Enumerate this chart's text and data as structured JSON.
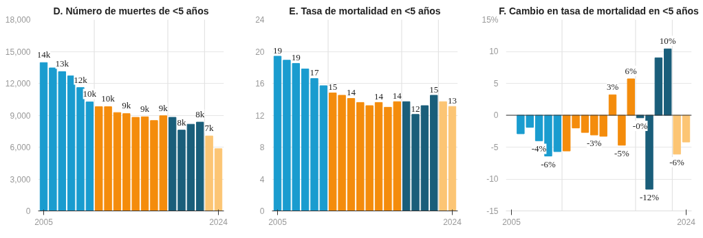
{
  "chart_data": [
    {
      "type": "bar",
      "title": "D. Número de muertes de <5 años",
      "x": [
        2005,
        2006,
        2007,
        2008,
        2009,
        2010,
        2011,
        2012,
        2013,
        2014,
        2015,
        2016,
        2017,
        2018,
        2019,
        2020,
        2021,
        2022,
        2023,
        2024
      ],
      "values": [
        13950,
        13450,
        13100,
        12700,
        11600,
        10250,
        9800,
        9800,
        9250,
        9150,
        8800,
        8850,
        8500,
        8950,
        8800,
        7600,
        8150,
        8350,
        7050,
        5850
      ],
      "colors": [
        "#1a9ccf",
        "#1a9ccf",
        "#1a9ccf",
        "#1a9ccf",
        "#1a9ccf",
        "#1a9ccf",
        "#f48c0c",
        "#f48c0c",
        "#f48c0c",
        "#f48c0c",
        "#f48c0c",
        "#f48c0c",
        "#f48c0c",
        "#f48c0c",
        "#1a5e7a",
        "#1a5e7a",
        "#1a5e7a",
        "#1a5e7a",
        "#fcc574",
        "#fcc574"
      ],
      "value_labels": [
        "14k",
        null,
        "13k",
        null,
        "12k",
        "10k",
        null,
        "10k",
        null,
        "9k",
        null,
        "9k",
        null,
        "9k",
        null,
        "8k",
        null,
        "8k",
        "7k",
        null
      ],
      "xlim": [
        2004.4,
        2024.6
      ],
      "xticks": [
        2005,
        2024
      ],
      "ylim": [
        0,
        18000
      ],
      "yticks": [
        {
          "value": 0,
          "label": "0"
        },
        {
          "value": 3000,
          "label": "3,000"
        },
        {
          "value": 6000,
          "label": "6,000"
        },
        {
          "value": 9000,
          "label": "9,000"
        },
        {
          "value": 12000,
          "label": "12,000"
        },
        {
          "value": 15000,
          "label": "15,000"
        },
        {
          "value": 18000,
          "label": "18,000"
        }
      ],
      "grid": "y",
      "ref_lines": [
        {
          "axis": "x",
          "value": 2010.5,
          "color": "#e3e3e3"
        },
        {
          "axis": "x",
          "value": 2018.5,
          "color": "#e3e3e3"
        },
        {
          "axis": "x",
          "value": 2022.5,
          "color": "#e3e3e3"
        }
      ]
    },
    {
      "type": "bar",
      "title": "E. Tasa de mortalidad en <5 años",
      "x": [
        2005,
        2006,
        2007,
        2008,
        2009,
        2010,
        2011,
        2012,
        2013,
        2014,
        2015,
        2016,
        2017,
        2018,
        2019,
        2020,
        2021,
        2022,
        2023,
        2024
      ],
      "values": [
        19.4,
        18.9,
        18.5,
        17.8,
        16.6,
        15.7,
        14.8,
        14.5,
        14.1,
        13.6,
        13.2,
        13.6,
        13.0,
        13.7,
        13.7,
        12.1,
        13.2,
        14.5,
        13.7,
        13.1
      ],
      "colors": [
        "#1a9ccf",
        "#1a9ccf",
        "#1a9ccf",
        "#1a9ccf",
        "#1a9ccf",
        "#1a9ccf",
        "#f48c0c",
        "#f48c0c",
        "#f48c0c",
        "#f48c0c",
        "#f48c0c",
        "#f48c0c",
        "#f48c0c",
        "#f48c0c",
        "#1a5e7a",
        "#1a5e7a",
        "#1a5e7a",
        "#1a5e7a",
        "#fcc574",
        "#fcc574"
      ],
      "value_labels": [
        "19",
        null,
        "19",
        null,
        "17",
        null,
        "15",
        null,
        "14",
        null,
        null,
        "14",
        null,
        "14",
        null,
        "12",
        null,
        "15",
        null,
        "13"
      ],
      "xlim": [
        2004.4,
        2024.6
      ],
      "xticks": [
        2005,
        2024
      ],
      "ylim": [
        0,
        24
      ],
      "yticks": [
        0,
        4,
        8,
        12,
        16,
        20,
        24
      ],
      "grid": "y",
      "ref_lines": [
        {
          "axis": "x",
          "value": 2010.5,
          "color": "#e3e3e3"
        },
        {
          "axis": "x",
          "value": 2018.5,
          "color": "#e3e3e3"
        },
        {
          "axis": "x",
          "value": 2022.5,
          "color": "#e3e3e3"
        }
      ]
    },
    {
      "type": "bar",
      "title": "F. Cambio en tasa de mortalidad en <5 años",
      "x": [
        2006,
        2007,
        2008,
        2009,
        2010,
        2011,
        2012,
        2013,
        2014,
        2015,
        2016,
        2017,
        2018,
        2019,
        2020,
        2021,
        2022,
        2023,
        2024
      ],
      "values": [
        -2.9,
        -1.9,
        -4.0,
        -6.4,
        -5.7,
        -5.6,
        -2.0,
        -2.7,
        -3.1,
        -3.3,
        3.2,
        -4.7,
        5.7,
        -0.4,
        -11.6,
        9.0,
        10.4,
        -6.1,
        -4.2
      ],
      "colors": [
        "#1a9ccf",
        "#1a9ccf",
        "#1a9ccf",
        "#1a9ccf",
        "#1a9ccf",
        "#f48c0c",
        "#f48c0c",
        "#f48c0c",
        "#f48c0c",
        "#f48c0c",
        "#f48c0c",
        "#f48c0c",
        "#f48c0c",
        "#1a5e7a",
        "#1a5e7a",
        "#1a5e7a",
        "#1a5e7a",
        "#fcc574",
        "#fcc574"
      ],
      "value_labels": [
        null,
        null,
        "-4%",
        "-6%",
        null,
        null,
        null,
        null,
        "-3%",
        null,
        "3%",
        "-5%",
        "6%",
        "-0%",
        "-12%",
        null,
        "10%",
        "-6%",
        null
      ],
      "xlim": [
        2004.4,
        2024.6
      ],
      "xticks": [
        2005,
        2024
      ],
      "ylim": [
        -15,
        15
      ],
      "yticks": [
        -15,
        -10,
        -5,
        0,
        5,
        10,
        {
          "value": 15,
          "label": "15%"
        }
      ],
      "grid": "y",
      "ref_lines": [
        {
          "axis": "x",
          "value": 2010.5,
          "color": "#e3e3e3"
        },
        {
          "axis": "x",
          "value": 2018.5,
          "color": "#e3e3e3"
        },
        {
          "axis": "x",
          "value": 2022.5,
          "color": "#e3e3e3"
        },
        {
          "axis": "y",
          "value": 0,
          "color": "#333333"
        }
      ]
    }
  ]
}
